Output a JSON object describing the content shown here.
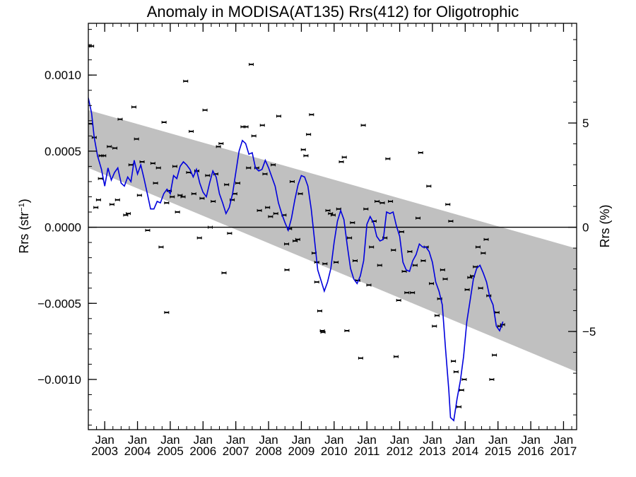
{
  "chart_data": {
    "type": "line",
    "title": "Anomaly in MODISA(AT135) Rrs(412) for Oligotrophic",
    "ylabel_left": "Rrs (str",
    "ylabel_left_sup": "−1",
    "ylabel_left_close": ")",
    "ylabel_right": "Rrs (%)",
    "ylim": [
      -0.00133,
      0.00134
    ],
    "xlim": [
      2002.5,
      2017.4
    ],
    "y_ticks": [
      {
        "v": 0.001,
        "label": "0.0010"
      },
      {
        "v": 0.0005,
        "label": "0.0005"
      },
      {
        "v": 0.0,
        "label": "0.0000"
      },
      {
        "v": -0.0005,
        "label": "−0.0005"
      },
      {
        "v": -0.001,
        "label": "−0.0010"
      }
    ],
    "right_ticks": [
      {
        "v": 0.000685,
        "label": "5"
      },
      {
        "v": 0.0,
        "label": "0"
      },
      {
        "v": -0.000685,
        "label": "−5"
      }
    ],
    "x_ticks": [
      {
        "v": 2003.0,
        "month": "Jan",
        "year": "2003"
      },
      {
        "v": 2004.0,
        "month": "Jan",
        "year": "2004"
      },
      {
        "v": 2005.0,
        "month": "Jan",
        "year": "2005"
      },
      {
        "v": 2006.0,
        "month": "Jan",
        "year": "2006"
      },
      {
        "v": 2007.0,
        "month": "Jan",
        "year": "2007"
      },
      {
        "v": 2008.0,
        "month": "Jan",
        "year": "2008"
      },
      {
        "v": 2009.0,
        "month": "Jan",
        "year": "2009"
      },
      {
        "v": 2010.0,
        "month": "Jan",
        "year": "2010"
      },
      {
        "v": 2011.0,
        "month": "Jan",
        "year": "2011"
      },
      {
        "v": 2012.0,
        "month": "Jan",
        "year": "2012"
      },
      {
        "v": 2013.0,
        "month": "Jan",
        "year": "2013"
      },
      {
        "v": 2014.0,
        "month": "Jan",
        "year": "2014"
      },
      {
        "v": 2015.0,
        "month": "Jan",
        "year": "2015"
      },
      {
        "v": 2016.0,
        "month": "Jan",
        "year": "2016"
      },
      {
        "v": 2017.0,
        "month": "Jan",
        "year": "2017"
      }
    ],
    "band": {
      "x": [
        2002.5,
        2017.4
      ],
      "upper": [
        0.00077,
        -0.00014
      ],
      "lower": [
        0.00039,
        -0.00095
      ]
    },
    "zero_line": 0.0,
    "points": [
      [
        2002.52,
        0.00119
      ],
      [
        2002.6,
        0.00119
      ],
      [
        2002.56,
        0.00068
      ],
      [
        2002.68,
        0.00059
      ],
      [
        2002.73,
        0.00013
      ],
      [
        2002.81,
        0.00018
      ],
      [
        2002.89,
        0.00047
      ],
      [
        2002.97,
        0.00047
      ],
      [
        2002.87,
        0.00032
      ],
      [
        2003.14,
        0.00053
      ],
      [
        2003.31,
        0.00052
      ],
      [
        2003.47,
        0.00071
      ],
      [
        2003.39,
        0.00018
      ],
      [
        2003.22,
        0.00015
      ],
      [
        2003.8,
        0.00041
      ],
      [
        2003.89,
        0.00079
      ],
      [
        2003.72,
        9e-05
      ],
      [
        2003.97,
        0.00058
      ],
      [
        2003.64,
        8e-05
      ],
      [
        2004.06,
        0.00021
      ],
      [
        2004.14,
        0.00043
      ],
      [
        2004.31,
        -2e-05
      ],
      [
        2004.72,
        -0.00013
      ],
      [
        2004.47,
        0.00042
      ],
      [
        2004.64,
        0.00039
      ],
      [
        2004.55,
        0.00029
      ],
      [
        2004.89,
        0.00016
      ],
      [
        2004.97,
        0.00024
      ],
      [
        2005.06,
        0.0002
      ],
      [
        2005.14,
        0.0004
      ],
      [
        2005.22,
        0.0001
      ],
      [
        2004.81,
        0.00069
      ],
      [
        2005.3,
        0.00021
      ],
      [
        2005.39,
        0.0002
      ],
      [
        2005.47,
        0.00096
      ],
      [
        2005.56,
        0.00036
      ],
      [
        2005.64,
        0.00063
      ],
      [
        2005.72,
        0.00022
      ],
      [
        2005.81,
        0.00037
      ],
      [
        2004.89,
        -0.00056
      ],
      [
        2005.89,
        -7e-05
      ],
      [
        2005.97,
        0.00019
      ],
      [
        2006.06,
        0.00077
      ],
      [
        2006.14,
        0.00034
      ],
      [
        2006.22,
        0.0
      ],
      [
        2006.31,
        0.00017
      ],
      [
        2006.47,
        0.00053
      ],
      [
        2006.39,
        0.00035
      ],
      [
        2006.55,
        0.00055
      ],
      [
        2006.72,
        0.00028
      ],
      [
        2006.64,
        -0.0003
      ],
      [
        2006.81,
        -4e-05
      ],
      [
        2006.89,
        0.00018
      ],
      [
        2006.97,
        0.00022
      ],
      [
        2007.06,
        0.00029
      ],
      [
        2007.22,
        0.00066
      ],
      [
        2007.31,
        0.00066
      ],
      [
        2007.39,
        0.00039
      ],
      [
        2007.47,
        0.00107
      ],
      [
        2007.55,
        0.0006
      ],
      [
        2007.64,
        0.00039
      ],
      [
        2007.72,
        0.00011
      ],
      [
        2007.81,
        0.00067
      ],
      [
        2007.89,
        0.00035
      ],
      [
        2007.97,
        0.00013
      ],
      [
        2008.06,
        7e-05
      ],
      [
        2008.14,
        0.00041
      ],
      [
        2008.22,
        9e-05
      ],
      [
        2008.31,
        0.00073
      ],
      [
        2008.47,
        8e-05
      ],
      [
        2008.55,
        -0.00011
      ],
      [
        2008.56,
        -0.00028
      ],
      [
        2008.64,
        -1e-05
      ],
      [
        2008.72,
        0.0003
      ],
      [
        2008.81,
        -9e-05
      ],
      [
        2008.89,
        -8e-05
      ],
      [
        2008.97,
        0.00022
      ],
      [
        2009.06,
        0.00051
      ],
      [
        2009.14,
        0.00047
      ],
      [
        2009.22,
        0.00061
      ],
      [
        2009.31,
        0.00074
      ],
      [
        2009.39,
        -0.00017
      ],
      [
        2009.47,
        -0.00023
      ],
      [
        2009.47,
        -0.00036
      ],
      [
        2009.56,
        -0.00055
      ],
      [
        2009.64,
        -0.00068
      ],
      [
        2009.66,
        -0.00069
      ],
      [
        2009.72,
        -0.00024
      ],
      [
        2009.81,
        0.00011
      ],
      [
        2009.89,
        9e-05
      ],
      [
        2009.97,
        8e-05
      ],
      [
        2010.06,
        -0.00023
      ],
      [
        2010.14,
        0.00012
      ],
      [
        2010.22,
        0.00043
      ],
      [
        2010.31,
        0.00046
      ],
      [
        2010.39,
        -0.00068
      ],
      [
        2010.47,
        -7e-05
      ],
      [
        2010.56,
        3e-05
      ],
      [
        2010.64,
        -0.00022
      ],
      [
        2010.72,
        -0.00035
      ],
      [
        2010.81,
        -0.00086
      ],
      [
        2010.89,
        0.00067
      ],
      [
        2010.97,
        0.00012
      ],
      [
        2011.06,
        -0.00038
      ],
      [
        2011.14,
        -0.00013
      ],
      [
        2011.22,
        4e-05
      ],
      [
        2011.31,
        0.00017
      ],
      [
        2011.39,
        -0.00025
      ],
      [
        2011.47,
        0.00016
      ],
      [
        2011.55,
        -7e-05
      ],
      [
        2011.64,
        0.00045
      ],
      [
        2011.72,
        0.00017
      ],
      [
        2011.81,
        -0.00015
      ],
      [
        2011.89,
        -0.00085
      ],
      [
        2011.97,
        -0.00048
      ],
      [
        2012.06,
        -3e-05
      ],
      [
        2012.14,
        -0.00029
      ],
      [
        2012.22,
        -0.00043
      ],
      [
        2012.31,
        -0.00016
      ],
      [
        2012.39,
        -0.00043
      ],
      [
        2012.47,
        -0.00025
      ],
      [
        2012.56,
        6e-05
      ],
      [
        2012.64,
        0.00049
      ],
      [
        2012.72,
        -0.00022
      ],
      [
        2012.81,
        -0.00013
      ],
      [
        2012.89,
        0.00027
      ],
      [
        2012.97,
        -0.00037
      ],
      [
        2013.06,
        -0.00065
      ],
      [
        2013.14,
        -0.00058
      ],
      [
        2013.22,
        -0.00047
      ],
      [
        2013.31,
        -0.00028
      ],
      [
        2013.39,
        -0.00034
      ],
      [
        2013.47,
        0.00015
      ],
      [
        2013.56,
        4e-05
      ],
      [
        2013.64,
        -0.00088
      ],
      [
        2013.72,
        -0.00095
      ],
      [
        2013.81,
        -0.00118
      ],
      [
        2013.89,
        -0.00107
      ],
      [
        2013.97,
        -0.001
      ],
      [
        2014.06,
        -0.00041
      ],
      [
        2014.14,
        -0.00033
      ],
      [
        2014.22,
        -0.00032
      ],
      [
        2014.31,
        -0.00026
      ],
      [
        2014.39,
        -0.00013
      ],
      [
        2014.47,
        -0.0004
      ],
      [
        2014.55,
        -0.00017
      ],
      [
        2014.64,
        -8e-05
      ],
      [
        2014.72,
        -0.00045
      ],
      [
        2014.81,
        -0.001
      ],
      [
        2014.89,
        -0.00084
      ],
      [
        2014.97,
        -0.00056
      ],
      [
        2015.06,
        -0.00065
      ],
      [
        2015.14,
        -0.00064
      ]
    ],
    "smooth_line": [
      [
        2002.5,
        0.00085
      ],
      [
        2002.6,
        0.00075
      ],
      [
        2002.68,
        0.00059
      ],
      [
        2002.78,
        0.00047
      ],
      [
        2002.9,
        0.00038
      ],
      [
        2003.0,
        0.00027
      ],
      [
        2003.1,
        0.00039
      ],
      [
        2003.2,
        0.00031
      ],
      [
        2003.3,
        0.00036
      ],
      [
        2003.4,
        0.00039
      ],
      [
        2003.5,
        0.00029
      ],
      [
        2003.6,
        0.00027
      ],
      [
        2003.7,
        0.00033
      ],
      [
        2003.8,
        0.0003
      ],
      [
        2003.9,
        0.00044
      ],
      [
        2004.0,
        0.00035
      ],
      [
        2004.1,
        0.00041
      ],
      [
        2004.2,
        0.00032
      ],
      [
        2004.3,
        0.00022
      ],
      [
        2004.4,
        0.00012
      ],
      [
        2004.5,
        0.00012
      ],
      [
        2004.6,
        0.00017
      ],
      [
        2004.7,
        0.00016
      ],
      [
        2004.8,
        0.00022
      ],
      [
        2004.9,
        0.00025
      ],
      [
        2005.0,
        0.00022
      ],
      [
        2005.1,
        0.00034
      ],
      [
        2005.2,
        0.00032
      ],
      [
        2005.3,
        0.0004
      ],
      [
        2005.4,
        0.00043
      ],
      [
        2005.5,
        0.00041
      ],
      [
        2005.6,
        0.00038
      ],
      [
        2005.7,
        0.00033
      ],
      [
        2005.8,
        0.00038
      ],
      [
        2005.9,
        0.00029
      ],
      [
        2006.0,
        0.00023
      ],
      [
        2006.1,
        0.0002
      ],
      [
        2006.2,
        0.00029
      ],
      [
        2006.3,
        0.00037
      ],
      [
        2006.4,
        0.00033
      ],
      [
        2006.5,
        0.00022
      ],
      [
        2006.6,
        0.00016
      ],
      [
        2006.7,
        9e-05
      ],
      [
        2006.8,
        0.00013
      ],
      [
        2006.9,
        0.00022
      ],
      [
        2007.0,
        0.00036
      ],
      [
        2007.1,
        0.0005
      ],
      [
        2007.2,
        0.00057
      ],
      [
        2007.3,
        0.00055
      ],
      [
        2007.4,
        0.00048
      ],
      [
        2007.5,
        0.00049
      ],
      [
        2007.6,
        0.00039
      ],
      [
        2007.7,
        0.00037
      ],
      [
        2007.8,
        0.00038
      ],
      [
        2007.9,
        0.00044
      ],
      [
        2008.0,
        0.00039
      ],
      [
        2008.1,
        0.00033
      ],
      [
        2008.2,
        0.00027
      ],
      [
        2008.3,
        0.00016
      ],
      [
        2008.4,
        9e-05
      ],
      [
        2008.5,
        3e-05
      ],
      [
        2008.6,
        -2e-05
      ],
      [
        2008.7,
        6e-05
      ],
      [
        2008.8,
        0.00018
      ],
      [
        2008.9,
        0.00028
      ],
      [
        2009.0,
        0.00034
      ],
      [
        2009.1,
        0.00033
      ],
      [
        2009.2,
        0.00027
      ],
      [
        2009.3,
        0.00012
      ],
      [
        2009.4,
        -8e-05
      ],
      [
        2009.5,
        -0.00028
      ],
      [
        2009.6,
        -0.00035
      ],
      [
        2009.7,
        -0.00042
      ],
      [
        2009.8,
        -0.00036
      ],
      [
        2009.9,
        -0.00027
      ],
      [
        2010.0,
        -0.0001
      ],
      [
        2010.1,
        4e-05
      ],
      [
        2010.2,
        0.00011
      ],
      [
        2010.3,
        5e-05
      ],
      [
        2010.4,
        -0.00012
      ],
      [
        2010.5,
        -0.00027
      ],
      [
        2010.6,
        -0.00034
      ],
      [
        2010.7,
        -0.00037
      ],
      [
        2010.8,
        -0.00032
      ],
      [
        2010.9,
        -0.00022
      ],
      [
        2011.0,
        2e-05
      ],
      [
        2011.1,
        7e-05
      ],
      [
        2011.2,
        3e-05
      ],
      [
        2011.3,
        -6e-05
      ],
      [
        2011.4,
        -9e-05
      ],
      [
        2011.5,
        -8e-05
      ],
      [
        2011.6,
        0.0001
      ],
      [
        2011.7,
        9e-05
      ],
      [
        2011.8,
        0.0001
      ],
      [
        2011.9,
        1e-05
      ],
      [
        2012.0,
        -6e-05
      ],
      [
        2012.1,
        -0.00023
      ],
      [
        2012.2,
        -0.00028
      ],
      [
        2012.3,
        -0.00029
      ],
      [
        2012.4,
        -0.00022
      ],
      [
        2012.5,
        -0.00018
      ],
      [
        2012.6,
        -0.00011
      ],
      [
        2012.7,
        -0.00013
      ],
      [
        2012.8,
        -0.00013
      ],
      [
        2012.9,
        -0.00016
      ],
      [
        2013.0,
        -0.00023
      ],
      [
        2013.1,
        -0.00036
      ],
      [
        2013.2,
        -0.00042
      ],
      [
        2013.3,
        -0.00051
      ],
      [
        2013.4,
        -0.0008
      ],
      [
        2013.5,
        -0.00107
      ],
      [
        2013.55,
        -0.00125
      ],
      [
        2013.65,
        -0.00127
      ],
      [
        2013.75,
        -0.00113
      ],
      [
        2013.85,
        -0.00101
      ],
      [
        2013.95,
        -0.00085
      ],
      [
        2014.05,
        -0.00062
      ],
      [
        2014.15,
        -0.00048
      ],
      [
        2014.25,
        -0.00034
      ],
      [
        2014.35,
        -0.00027
      ],
      [
        2014.45,
        -0.00025
      ],
      [
        2014.55,
        -0.0003
      ],
      [
        2014.65,
        -0.00036
      ],
      [
        2014.75,
        -0.00046
      ],
      [
        2014.85,
        -0.00051
      ],
      [
        2014.95,
        -0.00065
      ],
      [
        2015.05,
        -0.00068
      ],
      [
        2015.15,
        -0.00062
      ]
    ]
  }
}
